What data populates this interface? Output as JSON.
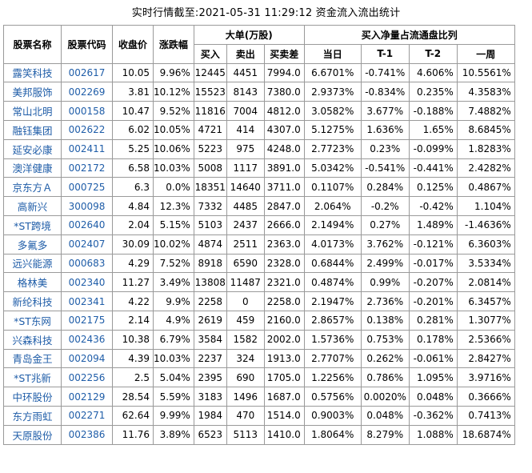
{
  "title": "实时行情截至:2021-05-31 11:29:12 资金流入流出统计",
  "headers": {
    "name": "股票名称",
    "code": "股票代码",
    "price": "收盘价",
    "change": "涨跌幅",
    "big_order": "大单(万股)",
    "buy": "买入",
    "sell": "卖出",
    "diff": "买卖差",
    "ratio_group": "买入净量占流通盘比列",
    "day": "当日",
    "t1": "T-1",
    "t2": "T-2",
    "week": "一周"
  },
  "rows": [
    {
      "name": "露笑科技",
      "code": "002617",
      "price": "10.05",
      "change": "9.96%",
      "buy": "12445",
      "sell": "4451",
      "diff": "7994.0",
      "day": "6.6701%",
      "t1": "-0.741%",
      "t2": "4.606%",
      "week": "10.5561%"
    },
    {
      "name": "美邦服饰",
      "code": "002269",
      "price": "3.81",
      "change": "10.12%",
      "buy": "15523",
      "sell": "8143",
      "diff": "7380.0",
      "day": "2.9373%",
      "t1": "-0.834%",
      "t2": "0.235%",
      "week": "4.3583%"
    },
    {
      "name": "常山北明",
      "code": "000158",
      "price": "10.47",
      "change": "9.52%",
      "buy": "11816",
      "sell": "7004",
      "diff": "4812.0",
      "day": "3.0582%",
      "t1": "3.677%",
      "t2": "-0.188%",
      "week": "7.4882%"
    },
    {
      "name": "融钰集团",
      "code": "002622",
      "price": "6.02",
      "change": "10.05%",
      "buy": "4721",
      "sell": "414",
      "diff": "4307.0",
      "day": "5.1275%",
      "t1": "1.636%",
      "t2": "1.65%",
      "week": "8.6845%"
    },
    {
      "name": "延安必康",
      "code": "002411",
      "price": "5.25",
      "change": "10.06%",
      "buy": "5223",
      "sell": "975",
      "diff": "4248.0",
      "day": "2.7723%",
      "t1": "0.23%",
      "t2": "-0.099%",
      "week": "1.8283%"
    },
    {
      "name": "澳洋健康",
      "code": "002172",
      "price": "6.58",
      "change": "10.03%",
      "buy": "5008",
      "sell": "1117",
      "diff": "3891.0",
      "day": "5.0342%",
      "t1": "-0.541%",
      "t2": "-0.441%",
      "week": "2.4282%"
    },
    {
      "name": "京东方Ａ",
      "code": "000725",
      "price": "6.3",
      "change": "0.0%",
      "buy": "18351",
      "sell": "14640",
      "diff": "3711.0",
      "day": "0.1107%",
      "t1": "0.284%",
      "t2": "0.125%",
      "week": "0.4867%"
    },
    {
      "name": "高新兴",
      "code": "300098",
      "price": "4.84",
      "change": "12.3%",
      "buy": "7332",
      "sell": "4485",
      "diff": "2847.0",
      "day": "2.064%",
      "t1": "-0.2%",
      "t2": "-0.42%",
      "week": "1.104%"
    },
    {
      "name": "*ST跨境",
      "code": "002640",
      "price": "2.04",
      "change": "5.15%",
      "buy": "5103",
      "sell": "2437",
      "diff": "2666.0",
      "day": "2.1494%",
      "t1": "0.27%",
      "t2": "1.489%",
      "week": "-1.4636%"
    },
    {
      "name": "多氟多",
      "code": "002407",
      "price": "30.09",
      "change": "10.02%",
      "buy": "4874",
      "sell": "2511",
      "diff": "2363.0",
      "day": "4.0173%",
      "t1": "3.762%",
      "t2": "-0.121%",
      "week": "6.3603%"
    },
    {
      "name": "远兴能源",
      "code": "000683",
      "price": "4.29",
      "change": "7.52%",
      "buy": "8918",
      "sell": "6590",
      "diff": "2328.0",
      "day": "0.6844%",
      "t1": "2.499%",
      "t2": "-0.017%",
      "week": "3.5334%"
    },
    {
      "name": "格林美",
      "code": "002340",
      "price": "11.27",
      "change": "3.49%",
      "buy": "13808",
      "sell": "11487",
      "diff": "2321.0",
      "day": "0.4874%",
      "t1": "0.99%",
      "t2": "-0.207%",
      "week": "2.0814%"
    },
    {
      "name": "新纶科技",
      "code": "002341",
      "price": "4.22",
      "change": "9.9%",
      "buy": "2258",
      "sell": "0",
      "diff": "2258.0",
      "day": "2.1947%",
      "t1": "2.736%",
      "t2": "-0.201%",
      "week": "6.3457%"
    },
    {
      "name": "*ST东网",
      "code": "002175",
      "price": "2.14",
      "change": "4.9%",
      "buy": "2619",
      "sell": "459",
      "diff": "2160.0",
      "day": "2.8657%",
      "t1": "0.138%",
      "t2": "0.281%",
      "week": "1.3077%"
    },
    {
      "name": "兴森科技",
      "code": "002436",
      "price": "10.38",
      "change": "6.79%",
      "buy": "3584",
      "sell": "1582",
      "diff": "2002.0",
      "day": "1.5736%",
      "t1": "0.753%",
      "t2": "0.178%",
      "week": "2.5366%"
    },
    {
      "name": "青岛金王",
      "code": "002094",
      "price": "4.39",
      "change": "10.03%",
      "buy": "2237",
      "sell": "324",
      "diff": "1913.0",
      "day": "2.7707%",
      "t1": "0.262%",
      "t2": "-0.061%",
      "week": "2.8427%"
    },
    {
      "name": "*ST兆新",
      "code": "002256",
      "price": "2.5",
      "change": "5.04%",
      "buy": "2395",
      "sell": "690",
      "diff": "1705.0",
      "day": "1.2256%",
      "t1": "0.786%",
      "t2": "1.095%",
      "week": "3.9716%"
    },
    {
      "name": "中环股份",
      "code": "002129",
      "price": "28.54",
      "change": "5.59%",
      "buy": "3183",
      "sell": "1496",
      "diff": "1687.0",
      "day": "0.5756%",
      "t1": "0.0020%",
      "t2": "0.048%",
      "week": "0.3666%"
    },
    {
      "name": "东方雨虹",
      "code": "002271",
      "price": "62.64",
      "change": "9.99%",
      "buy": "1984",
      "sell": "470",
      "diff": "1514.0",
      "day": "0.9003%",
      "t1": "0.048%",
      "t2": "-0.362%",
      "week": "0.7413%"
    },
    {
      "name": "天原股份",
      "code": "002386",
      "price": "11.76",
      "change": "3.89%",
      "buy": "6523",
      "sell": "5113",
      "diff": "1410.0",
      "day": "1.8064%",
      "t1": "8.279%",
      "t2": "1.088%",
      "week": "18.6874%"
    }
  ]
}
